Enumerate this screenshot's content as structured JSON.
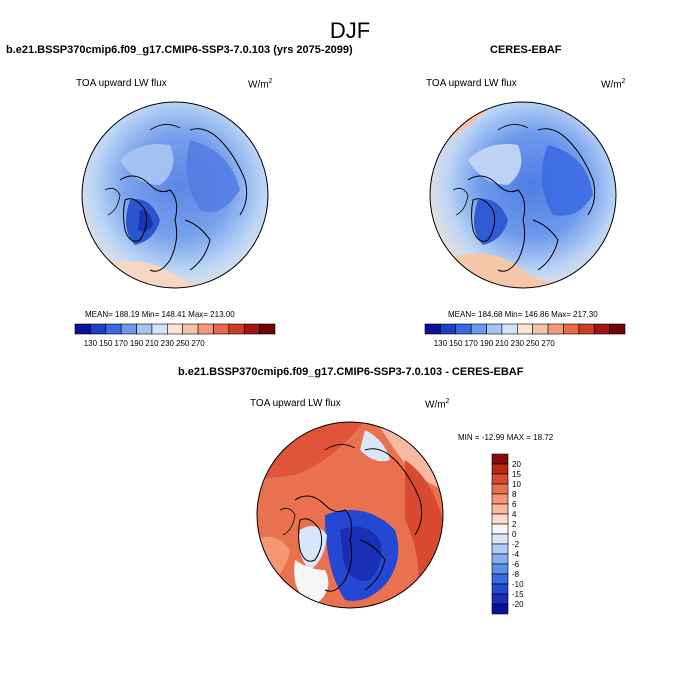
{
  "figure": {
    "title": "DJF"
  },
  "colors": {
    "abs_scale": [
      "#08109c",
      "#1c3fc4",
      "#3a6ae0",
      "#6d99ec",
      "#a4c4f2",
      "#d4e4f8",
      "#fbe4d2",
      "#f8c3a5",
      "#f39a78",
      "#e76a4c",
      "#cc3d28",
      "#a41414",
      "#6e0404"
    ],
    "diff_scale": [
      "#08109c",
      "#1a2fb6",
      "#2548d2",
      "#3a6ae0",
      "#5b8ee9",
      "#86afef",
      "#b1cbf4",
      "#d8e6f9",
      "#f6f6f6",
      "#fbdccc",
      "#f7baa0",
      "#f39775",
      "#ea714f",
      "#d94a30",
      "#bb2716",
      "#8c0a0a"
    ]
  },
  "panels": {
    "left": {
      "title": "b.e21.BSSP370cmip6.f09_g17.CMIP6-SSP3-7.0.103 (yrs 2075-2099)",
      "variable": "TOA upward LW flux",
      "units": "W/m",
      "units_sup": "2",
      "stats": "MEAN= 188.19  Min= 148.41  Max= 213.00"
    },
    "right": {
      "title": "CERES-EBAF",
      "variable": "TOA upward LW flux",
      "units": "W/m",
      "units_sup": "2",
      "stats": "MEAN= 184.68  Min= 146.86  Max= 217.30"
    },
    "diff": {
      "title": "b.e21.BSSP370cmip6.f09_g17.CMIP6-SSP3-7.0.103 - CERES-EBAF",
      "variable": "TOA upward LW flux",
      "units": "W/m",
      "units_sup": "2",
      "stats": "MIN = -12.99 MAX =  18.72"
    }
  },
  "chart_data": [
    {
      "type": "heatmap",
      "title": "b.e21.BSSP370cmip6.f09_g17.CMIP6-SSP3-7.0.103 (yrs 2075-2099)",
      "projection": "north polar stereographic",
      "variable": "TOA upward LW flux",
      "units": "W/m2",
      "mean": 188.19,
      "min": 148.41,
      "max": 213.0,
      "colorbar_labels": [
        "130",
        "150",
        "170",
        "190",
        "210",
        "230",
        "250",
        "270"
      ]
    },
    {
      "type": "heatmap",
      "title": "CERES-EBAF",
      "projection": "north polar stereographic",
      "variable": "TOA upward LW flux",
      "units": "W/m2",
      "mean": 184.68,
      "min": 146.86,
      "max": 217.3,
      "colorbar_labels": [
        "130",
        "150",
        "170",
        "190",
        "210",
        "230",
        "250",
        "270"
      ]
    },
    {
      "type": "heatmap",
      "title": "b.e21.BSSP370cmip6.f09_g17.CMIP6-SSP3-7.0.103 - CERES-EBAF",
      "projection": "north polar stereographic",
      "variable": "TOA upward LW flux",
      "units": "W/m2",
      "min": -12.99,
      "max": 18.72,
      "colorbar_labels": [
        "20",
        "15",
        "10",
        "8",
        "6",
        "4",
        "2",
        "0",
        "-2",
        "-4",
        "-6",
        "-8",
        "-10",
        "-15",
        "-20"
      ]
    }
  ]
}
